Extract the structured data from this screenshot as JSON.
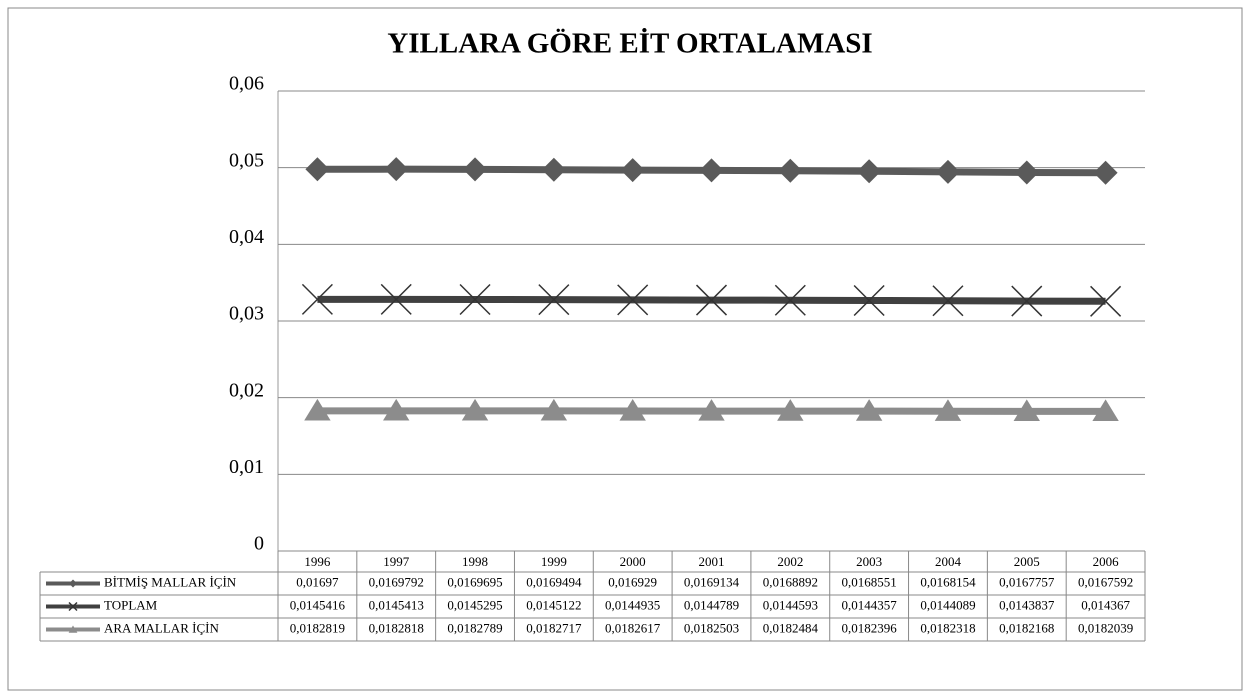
{
  "chart_data": {
    "type": "line",
    "stacked": true,
    "title": "YILLARA GÖRE EİT ORTALAMASI",
    "categories": [
      "1996",
      "1997",
      "1998",
      "1999",
      "2000",
      "2001",
      "2002",
      "2003",
      "2004",
      "2005",
      "2006"
    ],
    "ylim": [
      0,
      0.06
    ],
    "yticks": [
      0,
      {
        "value": 0.01,
        "label": "0,01"
      },
      {
        "value": 0.02,
        "label": "0,02"
      },
      {
        "value": 0.03,
        "label": "0,03"
      },
      {
        "value": 0.04,
        "label": "0,04"
      },
      {
        "value": 0.05,
        "label": "0,05"
      },
      {
        "value": 0.06,
        "label": "0,06"
      }
    ],
    "grid": true,
    "legend": "table",
    "series": [
      {
        "name": "BİTMİŞ MALLAR İÇİN",
        "color": "#5a5a5a",
        "marker": "diamond",
        "values": [
          0.01697,
          0.0169792,
          0.0169695,
          0.0169494,
          0.016929,
          0.0169134,
          0.0168892,
          0.0168551,
          0.0168154,
          0.0167757,
          0.0167592
        ],
        "value_labels": [
          "0,01697",
          "0,0169792",
          "0,0169695",
          "0,0169494",
          "0,016929",
          "0,0169134",
          "0,0168892",
          "0,0168551",
          "0,0168154",
          "0,0167757",
          "0,0167592"
        ]
      },
      {
        "name": "TOPLAM",
        "color": "#404040",
        "marker": "x",
        "values": [
          0.0145416,
          0.0145413,
          0.0145295,
          0.0145122,
          0.0144935,
          0.0144789,
          0.0144593,
          0.0144357,
          0.0144089,
          0.0143837,
          0.014367
        ],
        "value_labels": [
          "0,0145416",
          "0,0145413",
          "0,0145295",
          "0,0145122",
          "0,0144935",
          "0,0144789",
          "0,0144593",
          "0,0144357",
          "0,0144089",
          "0,0143837",
          "0,014367"
        ]
      },
      {
        "name": "ARA MALLAR İÇİN",
        "color": "#8c8c8c",
        "marker": "triangle",
        "values": [
          0.0182819,
          0.0182818,
          0.0182789,
          0.0182717,
          0.0182617,
          0.0182503,
          0.0182484,
          0.0182396,
          0.0182318,
          0.0182168,
          0.0182039
        ],
        "value_labels": [
          "0,0182819",
          "0,0182818",
          "0,0182789",
          "0,0182717",
          "0,0182617",
          "0,0182503",
          "0,0182484",
          "0,0182396",
          "0,0182318",
          "0,0182168",
          "0,0182039"
        ]
      }
    ]
  }
}
